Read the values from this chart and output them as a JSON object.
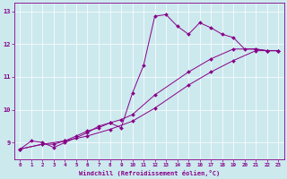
{
  "xlabel": "Windchill (Refroidissement éolien,°C)",
  "ylabel": "",
  "xlim": [
    -0.5,
    23.5
  ],
  "ylim": [
    8.5,
    13.25
  ],
  "yticks": [
    9,
    10,
    11,
    12,
    13
  ],
  "xticks": [
    0,
    1,
    2,
    3,
    4,
    5,
    6,
    7,
    8,
    9,
    10,
    11,
    12,
    13,
    14,
    15,
    16,
    17,
    18,
    19,
    20,
    21,
    22,
    23
  ],
  "bg_color": "#cce9ee",
  "line_color": "#880088",
  "lines": [
    {
      "x": [
        0,
        1,
        2,
        3,
        4,
        5,
        6,
        7,
        8,
        9,
        10,
        11,
        12,
        13,
        14,
        15,
        16,
        17,
        18,
        19,
        20,
        21,
        22,
        23
      ],
      "y": [
        8.8,
        9.05,
        9.0,
        8.85,
        9.0,
        9.15,
        9.3,
        9.5,
        9.6,
        9.45,
        10.5,
        11.35,
        12.85,
        12.9,
        12.55,
        12.3,
        12.65,
        12.5,
        12.3,
        12.2,
        11.85,
        11.85,
        11.8,
        11.8
      ]
    },
    {
      "x": [
        0,
        2,
        3,
        4,
        5,
        6,
        7,
        8,
        9,
        10,
        12,
        15,
        17,
        19,
        21,
        22,
        23
      ],
      "y": [
        8.8,
        8.95,
        8.95,
        9.05,
        9.2,
        9.35,
        9.45,
        9.6,
        9.7,
        9.85,
        10.45,
        11.15,
        11.55,
        11.85,
        11.85,
        11.8,
        11.8
      ]
    },
    {
      "x": [
        0,
        2,
        4,
        6,
        8,
        10,
        12,
        15,
        17,
        19,
        21,
        22,
        23
      ],
      "y": [
        8.8,
        8.95,
        9.05,
        9.2,
        9.4,
        9.65,
        10.05,
        10.75,
        11.15,
        11.5,
        11.8,
        11.8,
        11.8
      ]
    }
  ]
}
